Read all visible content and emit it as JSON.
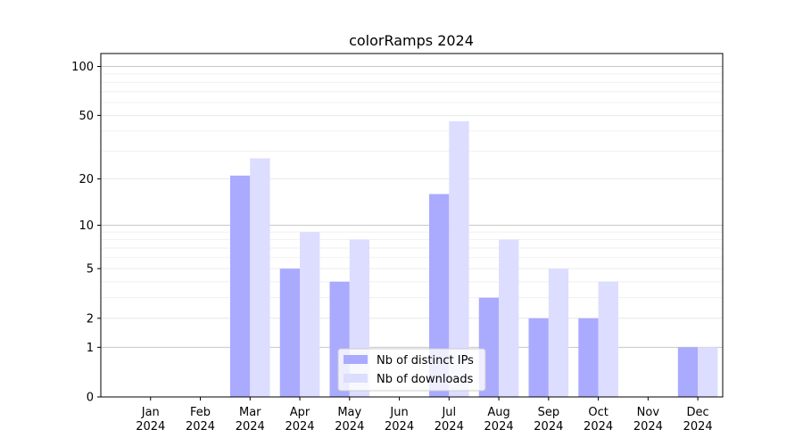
{
  "chart_data": {
    "type": "bar",
    "title": "colorRamps 2024",
    "xlabel": "",
    "ylabel": "",
    "yscale": "log1p",
    "ylim": [
      0,
      120
    ],
    "yticks": [
      0,
      1,
      2,
      5,
      10,
      20,
      50,
      100
    ],
    "grid": true,
    "legend_position": "lower-center",
    "categories": [
      "Jan",
      "Feb",
      "Mar",
      "Apr",
      "May",
      "Jun",
      "Jul",
      "Aug",
      "Sep",
      "Oct",
      "Nov",
      "Dec"
    ],
    "category_year": "2024",
    "series": [
      {
        "name": "Nb of distinct IPs",
        "color": "#aaaaff",
        "values": [
          0,
          0,
          21,
          5,
          4,
          0,
          16,
          3,
          2,
          2,
          0,
          1
        ]
      },
      {
        "name": "Nb of downloads",
        "color": "#ddddff",
        "values": [
          0,
          0,
          27,
          9,
          8,
          0,
          46,
          8,
          5,
          4,
          0,
          1
        ]
      }
    ]
  }
}
